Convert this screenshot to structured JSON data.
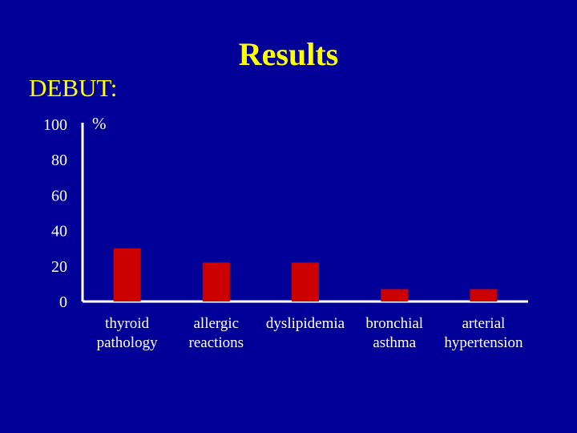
{
  "title": "Results",
  "subtitle": "DEBUT:",
  "colors": {
    "background": "#000099",
    "title": "#ffff00",
    "bar": "#cc0000",
    "axis": "#ffffff"
  },
  "chart_data": {
    "type": "bar",
    "unit_label": "%",
    "categories": [
      [
        "thyroid",
        "pathology"
      ],
      [
        "allergic",
        "reactions"
      ],
      [
        "dyslipidemia"
      ],
      [
        "bronchial",
        "asthma"
      ],
      [
        "arterial",
        "hypertension"
      ]
    ],
    "values": [
      30,
      22,
      22,
      7,
      7
    ],
    "ylim": [
      0,
      100
    ],
    "yticks": [
      "0",
      "20",
      "40",
      "60",
      "80",
      "100"
    ],
    "grid": false,
    "legend": "none"
  }
}
